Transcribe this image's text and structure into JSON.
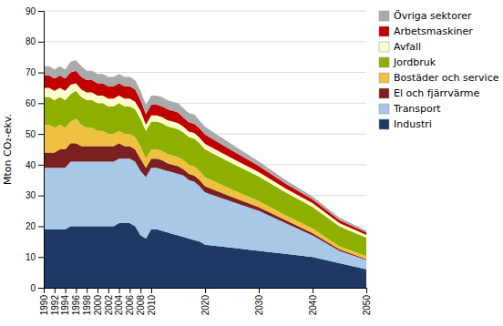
{
  "chart_data": {
    "type": "area",
    "stacked": true,
    "ylabel": "Mton CO₂-ekv.",
    "x": [
      1990,
      1991,
      1992,
      1993,
      1994,
      1995,
      1996,
      1997,
      1998,
      1999,
      2000,
      2001,
      2002,
      2003,
      2004,
      2005,
      2006,
      2007,
      2008,
      2009,
      2010,
      2011,
      2012,
      2013,
      2014,
      2015,
      2016,
      2017,
      2018,
      2019,
      2020,
      2025,
      2030,
      2035,
      2040,
      2045,
      2050
    ],
    "xlim": [
      1990,
      2050
    ],
    "xticks": [
      1990,
      1992,
      1994,
      1996,
      1998,
      2000,
      2002,
      2004,
      2006,
      2008,
      2010,
      2020,
      2030,
      2040,
      2050
    ],
    "ylim": [
      0,
      90
    ],
    "yticks": [
      0,
      10,
      20,
      30,
      40,
      50,
      60,
      70,
      80,
      90
    ],
    "grid": true,
    "legend": "right",
    "series": [
      {
        "name": "Industri",
        "color": "#1f3864",
        "values": [
          19,
          19,
          19,
          19,
          19,
          20,
          20,
          20,
          20,
          20,
          20,
          20,
          20,
          20,
          21,
          21,
          21,
          20,
          17,
          16,
          19,
          19,
          18.5,
          18,
          17.5,
          17,
          16.5,
          16,
          15.5,
          15,
          14,
          13,
          12,
          11,
          10,
          8,
          6
        ]
      },
      {
        "name": "Transport",
        "color": "#a8c8e8",
        "values": [
          20,
          20,
          20,
          20,
          20,
          21,
          21,
          21,
          21,
          21,
          21,
          21,
          21,
          21,
          21,
          21,
          21,
          21,
          21,
          20,
          20,
          20,
          20,
          20,
          20,
          20,
          20,
          19,
          19,
          18,
          17,
          15,
          13,
          10,
          7,
          4,
          3
        ]
      },
      {
        "name": "El och fjärrvärme",
        "color": "#7b2020",
        "values": [
          5,
          5,
          5,
          6,
          6,
          6,
          6,
          5,
          5,
          5,
          5,
          5,
          5,
          5,
          5,
          4,
          4,
          4,
          4,
          3,
          3,
          3,
          3,
          2.5,
          2.5,
          2.5,
          2,
          2,
          2,
          2,
          2,
          1.5,
          1.2,
          1.0,
          0.8,
          0.5,
          0.3
        ]
      },
      {
        "name": "Bostäder och service",
        "color": "#f0c040",
        "values": [
          9,
          9,
          8,
          8,
          7,
          7,
          8,
          7,
          6,
          6,
          5,
          5,
          4,
          4,
          4,
          4,
          4,
          4,
          4,
          3,
          3,
          3,
          3,
          3,
          3,
          3,
          3,
          3,
          3,
          3,
          3,
          2.5,
          2.0,
          1.5,
          1.5,
          1.0,
          1.0
        ]
      },
      {
        "name": "Jordbruk",
        "color": "#8db000",
        "values": [
          9,
          9,
          9,
          9,
          9,
          9,
          9,
          9,
          9,
          9,
          9,
          9,
          9,
          9,
          9,
          9,
          9,
          9,
          9,
          9,
          9,
          9,
          9,
          9,
          9,
          9,
          9,
          9,
          9,
          9,
          9,
          8.5,
          8.0,
          7.5,
          7.0,
          6.5,
          6.0
        ]
      },
      {
        "name": "Avfall",
        "color": "#ffffcc",
        "values": [
          3,
          3,
          3,
          3,
          3,
          3,
          2.5,
          2.5,
          2.5,
          2.5,
          2.5,
          2.5,
          2.5,
          2.5,
          2.5,
          2.5,
          2.5,
          2.5,
          2.5,
          2,
          2,
          2,
          2,
          2,
          2,
          2,
          1.8,
          1.8,
          1.8,
          1.8,
          1.8,
          1.6,
          1.4,
          1.3,
          1.2,
          1.0,
          0.9
        ]
      },
      {
        "name": "Arbetsmaskiner",
        "color": "#c00000",
        "values": [
          4,
          4,
          4,
          4,
          4,
          4,
          4,
          4,
          4,
          4,
          4,
          4,
          4,
          4,
          4,
          4,
          4,
          4,
          3.5,
          3.5,
          3.5,
          3.5,
          3.5,
          3.5,
          3.5,
          3.5,
          3,
          3,
          3,
          3,
          3,
          2.5,
          2.0,
          1.5,
          1.2,
          1.0,
          0.8
        ]
      },
      {
        "name": "Övriga sektorer",
        "color": "#aaaaaa",
        "values": [
          3,
          3,
          3,
          3,
          3,
          3.5,
          3.5,
          3.5,
          3,
          3,
          3,
          3,
          3,
          3,
          3,
          3,
          3,
          3,
          3,
          3,
          3,
          3,
          3,
          3,
          3,
          3,
          3,
          3,
          3,
          2.5,
          2.5,
          2.0,
          1.5,
          1.2,
          1.0,
          0.8,
          0.6
        ]
      }
    ]
  }
}
